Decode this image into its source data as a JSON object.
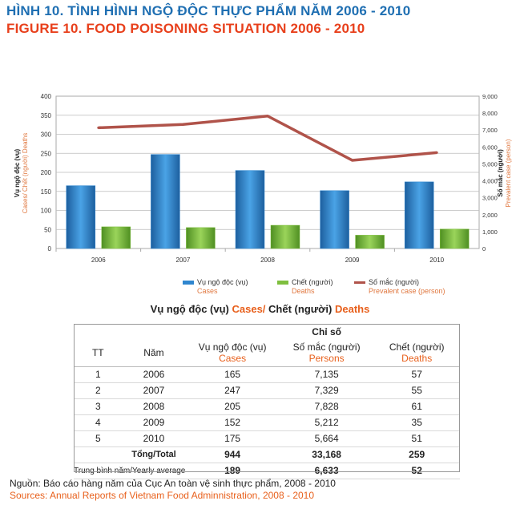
{
  "title_vn": "HÌNH 10. TÌNH HÌNH NGỘ ĐỘC THỰC PHẨM NĂM 2006 - 2010",
  "title_en": "FIGURE 10. FOOD POISONING SITUATION 2006 - 2010",
  "chart_data": {
    "type": "bar",
    "categories": [
      "2006",
      "2007",
      "2008",
      "2009",
      "2010"
    ],
    "series": [
      {
        "name": "Vụ ngộ độc (vụ) Cases",
        "type": "bar",
        "axis": "left",
        "color": "#2f86cf",
        "values": [
          165,
          247,
          205,
          152,
          175
        ]
      },
      {
        "name": "Chết (người) Deaths",
        "type": "bar",
        "axis": "left",
        "color": "#7fbf3f",
        "values": [
          57,
          55,
          61,
          35,
          51
        ]
      },
      {
        "name": "Số mắc (người) Prevalent case (person)",
        "type": "line",
        "axis": "right",
        "color": "#b0534a",
        "values": [
          7135,
          7329,
          7828,
          5212,
          5664
        ]
      }
    ],
    "ylim_left": [
      0,
      400
    ],
    "ylim_right": [
      0,
      9000
    ],
    "yticks_left": [
      "0",
      "50",
      "100",
      "150",
      "200",
      "250",
      "300",
      "350",
      "400"
    ],
    "yticks_right": [
      "0",
      "1,000",
      "2,000",
      "3,000",
      "4,000",
      "5,000",
      "6,000",
      "7,000",
      "8,000",
      "9,000"
    ],
    "ylabel_left_vn": "Vụ ngộ độc (vụ)",
    "ylabel_left_en": "Cases/ Chết (người) Deaths",
    "ylabel_right_vn": "Số mắc (người)",
    "ylabel_right_en": "Prevalent case (person)",
    "grid": true,
    "legend_placement": "bottom",
    "legend": [
      {
        "vn": "Vụ ngộ độc (vụ)",
        "en": "Cases",
        "color": "#2f86cf",
        "kind": "bar"
      },
      {
        "vn": "Chết (người)",
        "en": "Deaths",
        "color": "#7fbf3f",
        "kind": "bar"
      },
      {
        "vn": "Số mắc (người)",
        "en": "Prevalent case (person)",
        "color": "#b0534a",
        "kind": "line"
      }
    ]
  },
  "subtitle": {
    "vn1": "Vụ ngộ độc (vụ)",
    "en1": "Cases/",
    "vn2": "Chết (người)",
    "en2": "Deaths"
  },
  "table": {
    "group_header": "Chỉ số",
    "col_tt": "TT",
    "col_year": "Năm",
    "col_cases_vn": "Vụ ngộ độc (vụ)",
    "col_cases_en": "Cases",
    "col_persons_vn": "Số mắc (người)",
    "col_persons_en": "Persons",
    "col_deaths_vn": "Chết (người)",
    "col_deaths_en": "Deaths",
    "rows": [
      {
        "tt": "1",
        "year": "2006",
        "cases": "165",
        "persons": "7,135",
        "deaths": "57"
      },
      {
        "tt": "2",
        "year": "2007",
        "cases": "247",
        "persons": "7,329",
        "deaths": "55"
      },
      {
        "tt": "3",
        "year": "2008",
        "cases": "205",
        "persons": "7,828",
        "deaths": "61"
      },
      {
        "tt": "4",
        "year": "2009",
        "cases": "152",
        "persons": "5,212",
        "deaths": "35"
      },
      {
        "tt": "5",
        "year": "2010",
        "cases": "175",
        "persons": "5,664",
        "deaths": "51"
      }
    ],
    "total": {
      "label": "Tổng/Total",
      "cases": "944",
      "persons": "33,168",
      "deaths": "259"
    },
    "average": {
      "label": "Trung bình năm/Yearly average",
      "cases": "189",
      "persons": "6,633",
      "deaths": "52"
    }
  },
  "source_vn": "Nguồn: Báo cáo hàng năm của Cục An toàn vệ sinh thực phẩm, 2008 - 2010",
  "source_en": "Sources: Annual Reports of Vietnam Food Adminnistration, 2008 - 2010"
}
